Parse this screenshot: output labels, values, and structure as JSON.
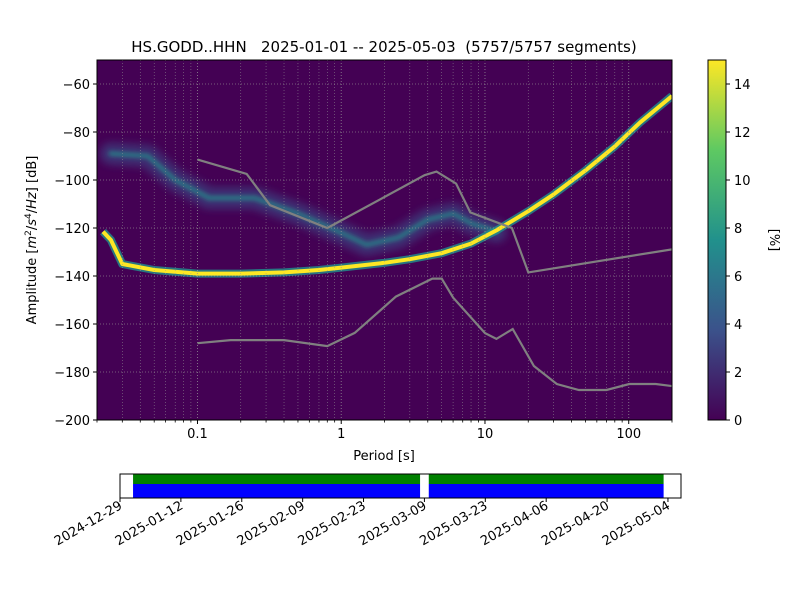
{
  "chart_data": [
    {
      "type": "heatmap",
      "title": "HS.GODD..HHN   2025-01-01 -- 2025-05-03  (5757/5757 segments)",
      "xlabel": "Period [s]",
      "ylabel_pre": "Amplitude [",
      "ylabel_unit_m": "m",
      "ylabel_exp2": "2",
      "ylabel_slash1": "/",
      "ylabel_unit_s": "s",
      "ylabel_exp4": "4",
      "ylabel_slash2": "/",
      "ylabel_unit_hz": "Hz",
      "ylabel_post": "] [dB]",
      "x_scale": "log",
      "xlim": [
        0.02,
        200
      ],
      "ylim": [
        -200,
        -50
      ],
      "x_ticks": [
        {
          "value": 0.1,
          "label": "0.1"
        },
        {
          "value": 1,
          "label": "1"
        },
        {
          "value": 10,
          "label": "10"
        },
        {
          "value": 100,
          "label": "100"
        }
      ],
      "y_ticks": [
        {
          "value": -60,
          "label": "−60"
        },
        {
          "value": -80,
          "label": "−80"
        },
        {
          "value": -100,
          "label": "−100"
        },
        {
          "value": -120,
          "label": "−120"
        },
        {
          "value": -140,
          "label": "−140"
        },
        {
          "value": -160,
          "label": "−160"
        },
        {
          "value": -180,
          "label": "−180"
        },
        {
          "value": -200,
          "label": "−200"
        }
      ],
      "grid": true,
      "colorbar": {
        "label": "[%]",
        "range": [
          0,
          15
        ],
        "ticks": [
          {
            "value": 0,
            "label": "0"
          },
          {
            "value": 2,
            "label": "2"
          },
          {
            "value": 4,
            "label": "4"
          },
          {
            "value": 6,
            "label": "6"
          },
          {
            "value": 8,
            "label": "8"
          },
          {
            "value": 10,
            "label": "10"
          },
          {
            "value": 12,
            "label": "12"
          },
          {
            "value": 14,
            "label": "14"
          }
        ],
        "colors": [
          "#440154",
          "#3b528b",
          "#21918c",
          "#5ec962",
          "#fde725"
        ]
      },
      "background_color": "#440154",
      "noise_model_color": "#808080",
      "high_noise_model": [
        [
          0.1,
          -91.5
        ],
        [
          0.22,
          -97.5
        ],
        [
          0.32,
          -110.5
        ],
        [
          0.8,
          -120
        ],
        [
          3.8,
          -98
        ],
        [
          4.6,
          -96.5
        ],
        [
          6.3,
          -101.5
        ],
        [
          7.9,
          -113.5
        ],
        [
          15.4,
          -120
        ],
        [
          20,
          -138.5
        ],
        [
          354.8,
          -126.5
        ]
      ],
      "low_noise_model": [
        [
          0.1,
          -168
        ],
        [
          0.17,
          -166.7
        ],
        [
          0.4,
          -166.7
        ],
        [
          0.8,
          -169.2
        ],
        [
          1.24,
          -163.7
        ],
        [
          2.4,
          -148.6
        ],
        [
          4.3,
          -141.1
        ],
        [
          5,
          -141.1
        ],
        [
          6,
          -149
        ],
        [
          10,
          -163.8
        ],
        [
          12,
          -166.2
        ],
        [
          15.6,
          -162.1
        ],
        [
          21.9,
          -177.5
        ],
        [
          31.6,
          -185
        ],
        [
          45,
          -187.5
        ],
        [
          70,
          -187.5
        ],
        [
          101,
          -185
        ],
        [
          154,
          -185
        ],
        [
          328,
          -187.5
        ]
      ],
      "mode_curve": [
        [
          0.022,
          -121.5
        ],
        [
          0.025,
          -125
        ],
        [
          0.03,
          -135
        ],
        [
          0.05,
          -137.5
        ],
        [
          0.1,
          -139
        ],
        [
          0.2,
          -139
        ],
        [
          0.4,
          -138.5
        ],
        [
          0.7,
          -137.5
        ],
        [
          1,
          -136.5
        ],
        [
          2,
          -134.5
        ],
        [
          3,
          -133
        ],
        [
          5,
          -130.5
        ],
        [
          8,
          -126.5
        ],
        [
          12,
          -121
        ],
        [
          20,
          -113
        ],
        [
          30,
          -106
        ],
        [
          50,
          -96
        ],
        [
          80,
          -86
        ],
        [
          120,
          -76
        ],
        [
          200,
          -65
        ]
      ],
      "diffuse_band": [
        [
          0.025,
          -89
        ],
        [
          0.045,
          -90
        ],
        [
          0.07,
          -100
        ],
        [
          0.12,
          -107.5
        ],
        [
          0.25,
          -107.5
        ],
        [
          0.5,
          -114
        ],
        [
          1,
          -122
        ],
        [
          1.5,
          -127
        ],
        [
          2.5,
          -124
        ],
        [
          4,
          -116.5
        ],
        [
          6,
          -114
        ],
        [
          8,
          -118
        ],
        [
          12,
          -121.5
        ]
      ]
    },
    {
      "type": "timeline",
      "start_date": "2024-12-29",
      "end_date": "2025-05-07",
      "data_coverage": [
        [
          "2025-01-01",
          "2025-03-08"
        ],
        [
          "2025-03-10",
          "2025-05-03"
        ]
      ],
      "colors": {
        "psd_segments": "#008000",
        "data_availability": "#0000ff"
      },
      "tick_labels": [
        "2024-12-29",
        "2025-01-12",
        "2025-01-26",
        "2025-02-09",
        "2025-02-23",
        "2025-03-09",
        "2025-03-23",
        "2025-04-06",
        "2025-04-20",
        "2025-05-04"
      ]
    }
  ]
}
